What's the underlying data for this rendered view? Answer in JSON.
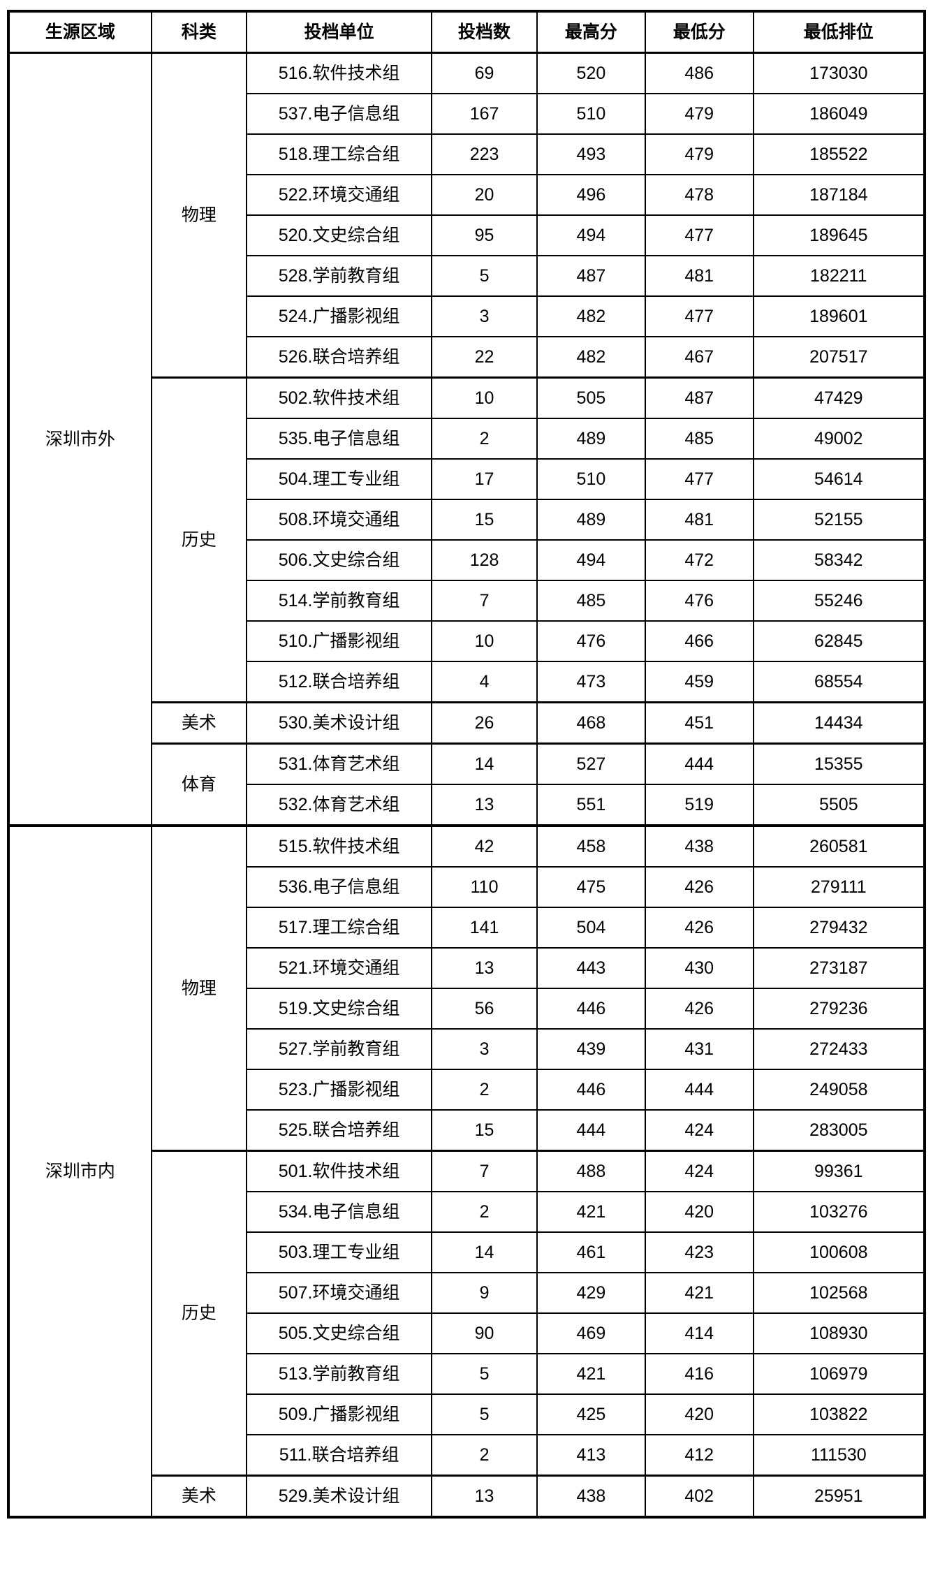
{
  "table": {
    "headers": [
      "生源区域",
      "科类",
      "投档单位",
      "投档数",
      "最高分",
      "最低分",
      "最低排位"
    ],
    "regions": [
      {
        "name": "深圳市外",
        "categories": [
          {
            "name": "物理",
            "rows": [
              [
                "516.软件技术组",
                "69",
                "520",
                "486",
                "173030"
              ],
              [
                "537.电子信息组",
                "167",
                "510",
                "479",
                "186049"
              ],
              [
                "518.理工综合组",
                "223",
                "493",
                "479",
                "185522"
              ],
              [
                "522.环境交通组",
                "20",
                "496",
                "478",
                "187184"
              ],
              [
                "520.文史综合组",
                "95",
                "494",
                "477",
                "189645"
              ],
              [
                "528.学前教育组",
                "5",
                "487",
                "481",
                "182211"
              ],
              [
                "524.广播影视组",
                "3",
                "482",
                "477",
                "189601"
              ],
              [
                "526.联合培养组",
                "22",
                "482",
                "467",
                "207517"
              ]
            ]
          },
          {
            "name": "历史",
            "rows": [
              [
                "502.软件技术组",
                "10",
                "505",
                "487",
                "47429"
              ],
              [
                "535.电子信息组",
                "2",
                "489",
                "485",
                "49002"
              ],
              [
                "504.理工专业组",
                "17",
                "510",
                "477",
                "54614"
              ],
              [
                "508.环境交通组",
                "15",
                "489",
                "481",
                "52155"
              ],
              [
                "506.文史综合组",
                "128",
                "494",
                "472",
                "58342"
              ],
              [
                "514.学前教育组",
                "7",
                "485",
                "476",
                "55246"
              ],
              [
                "510.广播影视组",
                "10",
                "476",
                "466",
                "62845"
              ],
              [
                "512.联合培养组",
                "4",
                "473",
                "459",
                "68554"
              ]
            ]
          },
          {
            "name": "美术",
            "rows": [
              [
                "530.美术设计组",
                "26",
                "468",
                "451",
                "14434"
              ]
            ]
          },
          {
            "name": "体育",
            "rows": [
              [
                "531.体育艺术组",
                "14",
                "527",
                "444",
                "15355"
              ],
              [
                "532.体育艺术组",
                "13",
                "551",
                "519",
                "5505"
              ]
            ]
          }
        ]
      },
      {
        "name": "深圳市内",
        "categories": [
          {
            "name": "物理",
            "rows": [
              [
                "515.软件技术组",
                "42",
                "458",
                "438",
                "260581"
              ],
              [
                "536.电子信息组",
                "110",
                "475",
                "426",
                "279111"
              ],
              [
                "517.理工综合组",
                "141",
                "504",
                "426",
                "279432"
              ],
              [
                "521.环境交通组",
                "13",
                "443",
                "430",
                "273187"
              ],
              [
                "519.文史综合组",
                "56",
                "446",
                "426",
                "279236"
              ],
              [
                "527.学前教育组",
                "3",
                "439",
                "431",
                "272433"
              ],
              [
                "523.广播影视组",
                "2",
                "446",
                "444",
                "249058"
              ],
              [
                "525.联合培养组",
                "15",
                "444",
                "424",
                "283005"
              ]
            ]
          },
          {
            "name": "历史",
            "rows": [
              [
                "501.软件技术组",
                "7",
                "488",
                "424",
                "99361"
              ],
              [
                "534.电子信息组",
                "2",
                "421",
                "420",
                "103276"
              ],
              [
                "503.理工专业组",
                "14",
                "461",
                "423",
                "100608"
              ],
              [
                "507.环境交通组",
                "9",
                "429",
                "421",
                "102568"
              ],
              [
                "505.文史综合组",
                "90",
                "469",
                "414",
                "108930"
              ],
              [
                "513.学前教育组",
                "5",
                "421",
                "416",
                "106979"
              ],
              [
                "509.广播影视组",
                "5",
                "425",
                "420",
                "103822"
              ],
              [
                "511.联合培养组",
                "2",
                "413",
                "412",
                "111530"
              ]
            ]
          },
          {
            "name": "美术",
            "rows": [
              [
                "529.美术设计组",
                "13",
                "438",
                "402",
                "25951"
              ]
            ]
          }
        ]
      }
    ]
  }
}
